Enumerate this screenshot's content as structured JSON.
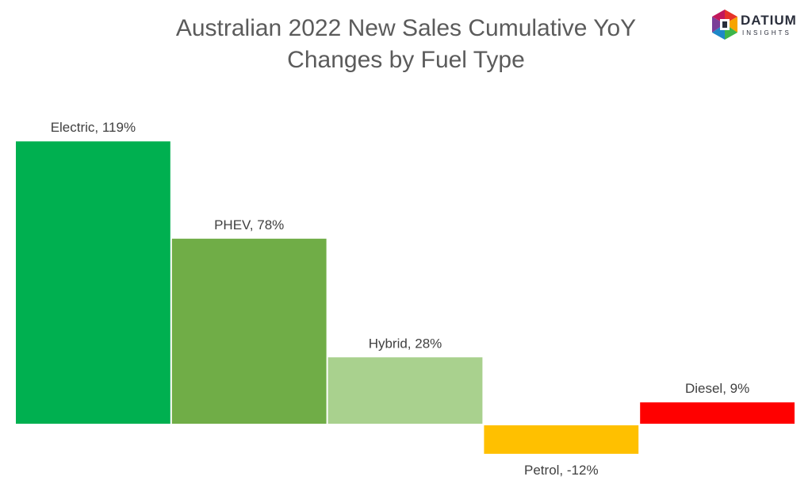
{
  "title": {
    "line1": "Australian 2022 New Sales Cumulative YoY",
    "line2": "Changes by Fuel Type"
  },
  "logo": {
    "name": "DATIUM",
    "tagline": "INSIGHTS",
    "icon": "datium-cube-logo-icon",
    "colors": [
      "#e63329",
      "#f7a400",
      "#3db54a",
      "#1e88c8",
      "#7b3f98"
    ]
  },
  "chart_data": {
    "type": "bar",
    "categories": [
      "Electric",
      "PHEV",
      "Hybrid",
      "Petrol",
      "Diesel"
    ],
    "values": [
      119,
      78,
      28,
      -12,
      9
    ],
    "labels": [
      "Electric, 119%",
      "PHEV, 78%",
      "Hybrid, 28%",
      "Petrol, -12%",
      "Diesel, 9%"
    ],
    "colors": [
      "#00b050",
      "#70ad47",
      "#a9d18e",
      "#ffc000",
      "#ff0000"
    ],
    "unit": "%",
    "grid": false,
    "legend": "none",
    "axes_visible": false
  }
}
